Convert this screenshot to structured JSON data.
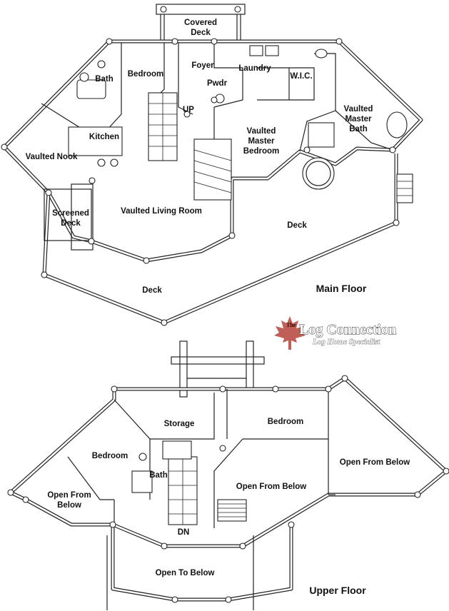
{
  "main_floor": {
    "title": "Main Floor",
    "rooms": {
      "covered_deck": [
        "Covered",
        "Deck"
      ],
      "bath": "Bath",
      "bedroom": "Bedroom",
      "foyer": "Foyer",
      "laundry": "Laundry",
      "wic": "W.I.C.",
      "pwdr": "Pwdr",
      "up": "UP",
      "kitchen": "Kitchen",
      "vaulted_nook": "Vaulted Nook",
      "vaulted_master_bedroom": [
        "Vaulted",
        "Master",
        "Bedroom"
      ],
      "vaulted_master_bath": [
        "Vaulted",
        "Master",
        "Bath"
      ],
      "screened_deck": [
        "Screened",
        "Deck"
      ],
      "vaulted_living_room": "Vaulted Living Room",
      "deck_right": "Deck",
      "deck_bottom": "Deck"
    }
  },
  "logo": {
    "the": "The",
    "name": "Log Connection",
    "tagline": "Log Home Specialist",
    "leaf_color": "#b5433a"
  },
  "upper_floor": {
    "title": "Upper Floor",
    "rooms": {
      "storage": "Storage",
      "bedroom_right": "Bedroom",
      "bedroom_left": "Bedroom",
      "bath": "Bath",
      "open_from_below_right": "Open From Below",
      "open_from_below_center": "Open From Below",
      "open_from_below_left": [
        "Open From",
        "Below"
      ],
      "dn": "DN",
      "open_to_below": "Open To Below"
    }
  }
}
